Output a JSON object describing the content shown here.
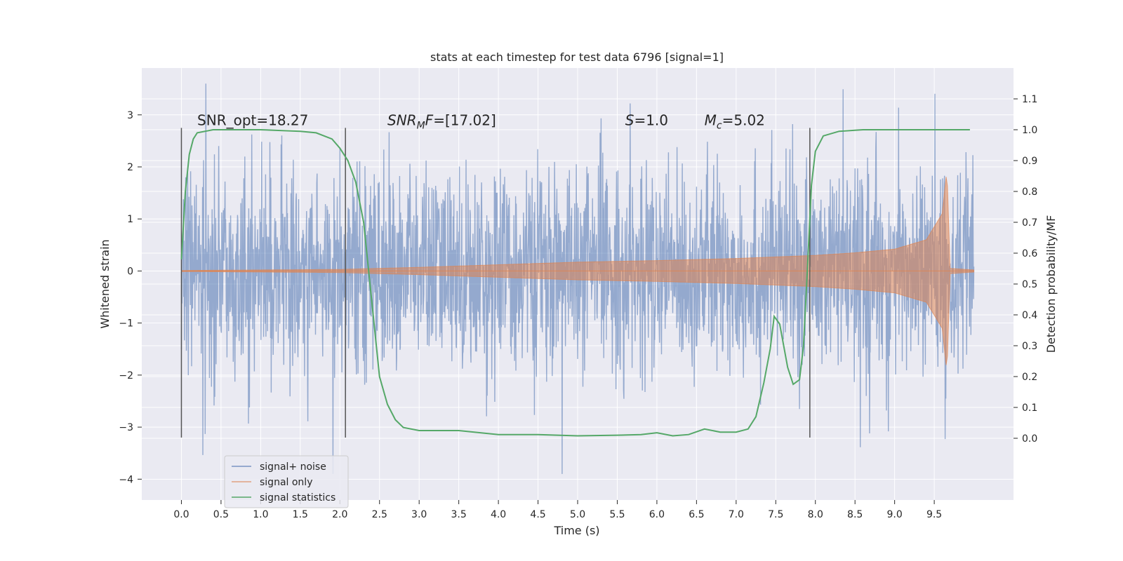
{
  "chart_data": {
    "type": "line",
    "title": "stats at each timestep for test data 6796 [signal=1]",
    "xlabel": "Time (s)",
    "ylabel": "Whitened strain",
    "ylabel_right": "Detection probability/MF",
    "xlim": [
      -0.5,
      10.5
    ],
    "ylim": [
      -4.4,
      3.9
    ],
    "ylim_right": [
      -0.2,
      1.2
    ],
    "x_ticks": [
      "0.0",
      "0.5",
      "1.0",
      "1.5",
      "2.0",
      "2.5",
      "3.0",
      "3.5",
      "4.0",
      "4.5",
      "5.0",
      "5.5",
      "6.0",
      "6.5",
      "7.0",
      "7.5",
      "8.0",
      "8.5",
      "9.0",
      "9.5"
    ],
    "y_ticks": [
      "3",
      "2",
      "1",
      "0",
      "−1",
      "−2",
      "−3",
      "−4"
    ],
    "y_ticks_right": [
      "1.1",
      "1.0",
      "0.9",
      "0.8",
      "0.7",
      "0.6",
      "0.5",
      "0.4",
      "0.3",
      "0.2",
      "0.1",
      "0.0"
    ],
    "grid": true,
    "legend_placement": "bottom-left",
    "series": [
      {
        "name": "signal+ noise",
        "color": "#4c72b0",
        "axis": "left",
        "style": "dense noise, roughly ±2 with spikes to about ±3.5",
        "x_range": [
          0.0,
          10.0
        ]
      },
      {
        "name": "signal only",
        "color": "#dd8452",
        "axis": "left",
        "style": "chirp envelope",
        "envelope_points": [
          {
            "x": 0.0,
            "amp": 0.01
          },
          {
            "x": 2.0,
            "amp": 0.03
          },
          {
            "x": 3.0,
            "amp": 0.07
          },
          {
            "x": 4.0,
            "amp": 0.12
          },
          {
            "x": 5.0,
            "amp": 0.17
          },
          {
            "x": 6.0,
            "amp": 0.2
          },
          {
            "x": 7.0,
            "amp": 0.24
          },
          {
            "x": 8.0,
            "amp": 0.3
          },
          {
            "x": 8.5,
            "amp": 0.35
          },
          {
            "x": 9.0,
            "amp": 0.42
          },
          {
            "x": 9.4,
            "amp": 0.6
          },
          {
            "x": 9.6,
            "amp": 1.1
          },
          {
            "x": 9.66,
            "amp": 1.95
          },
          {
            "x": 9.7,
            "amp": 0.05
          },
          {
            "x": 10.0,
            "amp": 0.02
          }
        ]
      },
      {
        "name": "signal statistics",
        "color": "#55a868",
        "axis": "right",
        "points": [
          {
            "x": 0.0,
            "y": 0.58
          },
          {
            "x": 0.05,
            "y": 0.8
          },
          {
            "x": 0.1,
            "y": 0.92
          },
          {
            "x": 0.15,
            "y": 0.97
          },
          {
            "x": 0.2,
            "y": 0.99
          },
          {
            "x": 0.4,
            "y": 1.0
          },
          {
            "x": 1.0,
            "y": 1.0
          },
          {
            "x": 1.5,
            "y": 0.995
          },
          {
            "x": 1.7,
            "y": 0.99
          },
          {
            "x": 1.9,
            "y": 0.97
          },
          {
            "x": 2.0,
            "y": 0.94
          },
          {
            "x": 2.1,
            "y": 0.9
          },
          {
            "x": 2.2,
            "y": 0.83
          },
          {
            "x": 2.3,
            "y": 0.7
          },
          {
            "x": 2.4,
            "y": 0.45
          },
          {
            "x": 2.5,
            "y": 0.2
          },
          {
            "x": 2.6,
            "y": 0.11
          },
          {
            "x": 2.7,
            "y": 0.06
          },
          {
            "x": 2.8,
            "y": 0.035
          },
          {
            "x": 3.0,
            "y": 0.025
          },
          {
            "x": 3.5,
            "y": 0.025
          },
          {
            "x": 4.0,
            "y": 0.012
          },
          {
            "x": 4.5,
            "y": 0.012
          },
          {
            "x": 5.0,
            "y": 0.008
          },
          {
            "x": 5.5,
            "y": 0.01
          },
          {
            "x": 5.8,
            "y": 0.012
          },
          {
            "x": 6.0,
            "y": 0.018
          },
          {
            "x": 6.2,
            "y": 0.008
          },
          {
            "x": 6.4,
            "y": 0.012
          },
          {
            "x": 6.6,
            "y": 0.03
          },
          {
            "x": 6.8,
            "y": 0.02
          },
          {
            "x": 7.0,
            "y": 0.02
          },
          {
            "x": 7.15,
            "y": 0.03
          },
          {
            "x": 7.25,
            "y": 0.07
          },
          {
            "x": 7.35,
            "y": 0.18
          },
          {
            "x": 7.43,
            "y": 0.29
          },
          {
            "x": 7.48,
            "y": 0.395
          },
          {
            "x": 7.55,
            "y": 0.37
          },
          {
            "x": 7.65,
            "y": 0.23
          },
          {
            "x": 7.72,
            "y": 0.175
          },
          {
            "x": 7.8,
            "y": 0.19
          },
          {
            "x": 7.85,
            "y": 0.3
          },
          {
            "x": 7.9,
            "y": 0.55
          },
          {
            "x": 7.95,
            "y": 0.82
          },
          {
            "x": 8.0,
            "y": 0.93
          },
          {
            "x": 8.1,
            "y": 0.98
          },
          {
            "x": 8.3,
            "y": 0.995
          },
          {
            "x": 8.6,
            "y": 1.0
          },
          {
            "x": 9.95,
            "y": 1.0
          }
        ]
      }
    ],
    "vertical_lines": [
      0.0,
      2.07,
      7.93
    ],
    "annotations": [
      {
        "parts": [
          {
            "t": "SNR_opt=18.27"
          }
        ],
        "x": 0.2,
        "y": 2.8
      },
      {
        "parts": [
          {
            "t": "SNR",
            "italic": true
          },
          {
            "t": "M",
            "italic": true,
            "sub": true
          },
          {
            "t": "F",
            "italic": true
          },
          {
            "t": "=[17.02]"
          }
        ],
        "x": 2.6,
        "y": 2.8
      },
      {
        "parts": [
          {
            "t": "S",
            "italic": true
          },
          {
            "t": "=1.0"
          }
        ],
        "x": 5.6,
        "y": 2.8
      },
      {
        "parts": [
          {
            "t": "M",
            "italic": true
          },
          {
            "t": "c",
            "italic": true,
            "sub": true
          },
          {
            "t": "=5.02"
          }
        ],
        "x": 6.6,
        "y": 2.8
      }
    ]
  }
}
